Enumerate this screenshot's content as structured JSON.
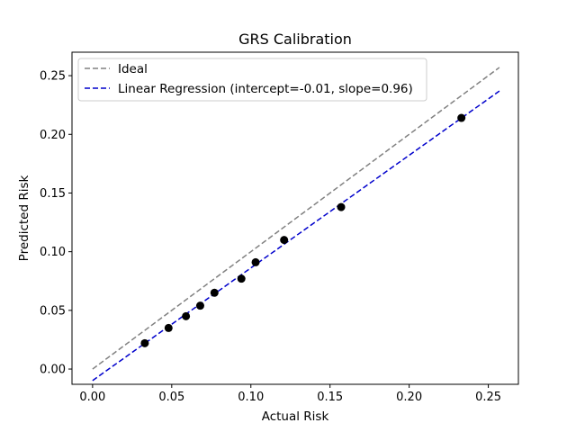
{
  "chart_data": {
    "type": "scatter",
    "title": "GRS Calibration",
    "xlabel": "Actual Risk",
    "ylabel": "Predicted Risk",
    "xlim": [
      -0.013,
      0.269
    ],
    "ylim": [
      -0.013,
      0.27
    ],
    "xticks": [
      0.0,
      0.05,
      0.1,
      0.15,
      0.2,
      0.25
    ],
    "xtick_labels": [
      "0.00",
      "0.05",
      "0.10",
      "0.15",
      "0.20",
      "0.25"
    ],
    "yticks": [
      0.0,
      0.05,
      0.1,
      0.15,
      0.2,
      0.25
    ],
    "ytick_labels": [
      "0.00",
      "0.05",
      "0.10",
      "0.15",
      "0.20",
      "0.25"
    ],
    "grid": false,
    "legend_position": "top-left",
    "series": [
      {
        "name": "",
        "kind": "scatter",
        "color": "#000000",
        "x": [
          0.033,
          0.048,
          0.059,
          0.068,
          0.077,
          0.094,
          0.103,
          0.121,
          0.157,
          0.233
        ],
        "y": [
          0.022,
          0.035,
          0.045,
          0.054,
          0.065,
          0.077,
          0.091,
          0.11,
          0.138,
          0.214
        ]
      },
      {
        "name": "Ideal",
        "kind": "line",
        "style": "dashed",
        "color": "#808080",
        "x": [
          0.0,
          0.257
        ],
        "y": [
          0.0,
          0.257
        ]
      },
      {
        "name": "Linear Regression (intercept=-0.01, slope=0.96)",
        "kind": "line",
        "style": "dashed",
        "color": "#0000cc",
        "x": [
          0.0,
          0.257
        ],
        "y": [
          -0.0098,
          0.2369
        ]
      }
    ]
  }
}
